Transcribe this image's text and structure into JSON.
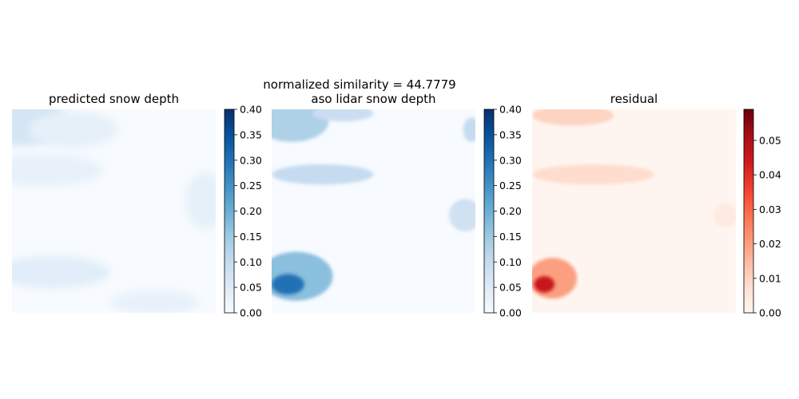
{
  "suptitle": "normalized similarity = 44.7779",
  "chart_data": [
    {
      "type": "heatmap",
      "title": "predicted snow depth",
      "colormap": "Blues",
      "colorbar": {
        "range": [
          0.0,
          0.4
        ],
        "ticks": [
          "0.00",
          "0.05",
          "0.10",
          "0.15",
          "0.20",
          "0.25",
          "0.30",
          "0.35",
          "0.40"
        ]
      },
      "features": [
        {
          "x": 0.05,
          "y": 0.06,
          "rx": 0.22,
          "ry": 0.12,
          "value": 0.07
        },
        {
          "x": 0.3,
          "y": 0.1,
          "rx": 0.22,
          "ry": 0.09,
          "value": 0.035
        },
        {
          "x": 0.15,
          "y": 0.3,
          "rx": 0.3,
          "ry": 0.08,
          "value": 0.03
        },
        {
          "x": 0.95,
          "y": 0.45,
          "rx": 0.1,
          "ry": 0.14,
          "value": 0.035
        },
        {
          "x": 0.2,
          "y": 0.8,
          "rx": 0.28,
          "ry": 0.08,
          "value": 0.045
        },
        {
          "x": 0.7,
          "y": 0.95,
          "rx": 0.22,
          "ry": 0.06,
          "value": 0.03
        }
      ]
    },
    {
      "type": "heatmap",
      "title": "aso lidar snow depth",
      "colormap": "Blues",
      "colorbar": {
        "range": [
          0.0,
          0.4
        ],
        "ticks": [
          "0.00",
          "0.05",
          "0.10",
          "0.15",
          "0.20",
          "0.25",
          "0.30",
          "0.35",
          "0.40"
        ]
      },
      "features": [
        {
          "x": 0.1,
          "y": 0.06,
          "rx": 0.18,
          "ry": 0.1,
          "value": 0.13
        },
        {
          "x": 0.35,
          "y": 0.02,
          "rx": 0.15,
          "ry": 0.04,
          "value": 0.09
        },
        {
          "x": 0.25,
          "y": 0.32,
          "rx": 0.25,
          "ry": 0.05,
          "value": 0.1
        },
        {
          "x": 0.95,
          "y": 0.52,
          "rx": 0.08,
          "ry": 0.08,
          "value": 0.08
        },
        {
          "x": 0.98,
          "y": 0.1,
          "rx": 0.04,
          "ry": 0.06,
          "value": 0.1
        },
        {
          "x": 0.12,
          "y": 0.82,
          "rx": 0.18,
          "ry": 0.12,
          "value": 0.17
        },
        {
          "x": 0.08,
          "y": 0.86,
          "rx": 0.08,
          "ry": 0.05,
          "value": 0.3
        }
      ]
    },
    {
      "type": "heatmap",
      "title": "residual",
      "colormap": "Reds",
      "colorbar": {
        "range": [
          0.0,
          0.059
        ],
        "ticks": [
          "0.00",
          "0.01",
          "0.02",
          "0.03",
          "0.04",
          "0.05"
        ]
      },
      "features": [
        {
          "x": 0.2,
          "y": 0.03,
          "rx": 0.2,
          "ry": 0.05,
          "value": 0.01
        },
        {
          "x": 0.3,
          "y": 0.32,
          "rx": 0.3,
          "ry": 0.05,
          "value": 0.008
        },
        {
          "x": 0.1,
          "y": 0.83,
          "rx": 0.12,
          "ry": 0.1,
          "value": 0.02
        },
        {
          "x": 0.06,
          "y": 0.86,
          "rx": 0.05,
          "ry": 0.04,
          "value": 0.045
        },
        {
          "x": 0.95,
          "y": 0.52,
          "rx": 0.06,
          "ry": 0.06,
          "value": 0.004
        }
      ]
    }
  ]
}
